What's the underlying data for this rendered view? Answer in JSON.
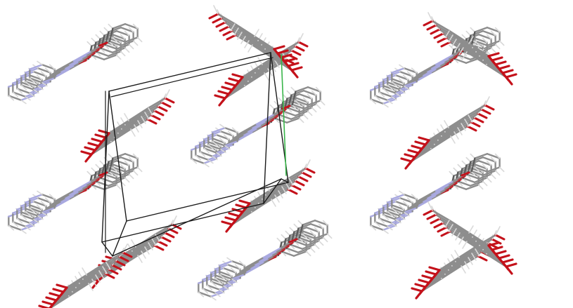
{
  "image": {
    "kind": "crystal-packing-diagram",
    "background": "#ffffff"
  },
  "colors": {
    "carbon": "#8d8d8d",
    "carbon_dark": "#5a5a5a",
    "hydrogen": "#d9d9d9",
    "oxygen": "#c4111a",
    "nitrogen": "#a9a9e0",
    "unit_cell": "#1a1a1a",
    "b_axis": "#39b54a"
  }
}
